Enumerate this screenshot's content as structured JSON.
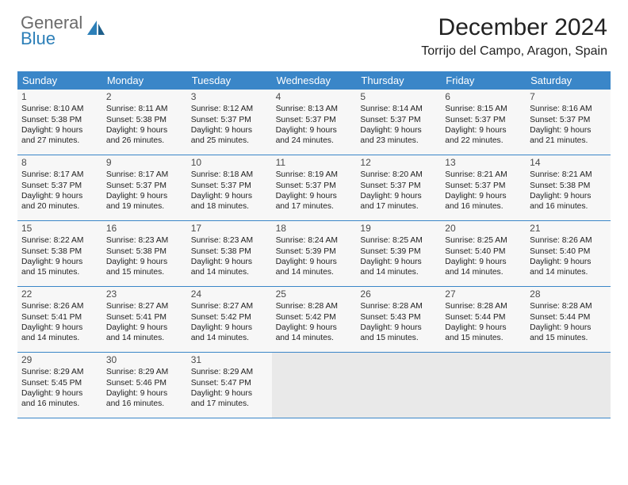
{
  "logo": {
    "textTop": "General",
    "textBottom": "Blue"
  },
  "title": "December 2024",
  "location": "Torrijo del Campo, Aragon, Spain",
  "colors": {
    "headerBar": "#3a86c8",
    "rowBg": "#f7f7f7",
    "ruleLine": "#3a86c8",
    "pageBg": "#ffffff",
    "logoGray": "#6b6b6b",
    "logoBlue": "#2c7fb8"
  },
  "weekdays": [
    "Sunday",
    "Monday",
    "Tuesday",
    "Wednesday",
    "Thursday",
    "Friday",
    "Saturday"
  ],
  "layout": {
    "columns": 7,
    "rows": 5,
    "cellFontSize": 10.3,
    "dayNumFontSize": 12,
    "titleFontSize": 30,
    "locationFontSize": 16
  },
  "days": [
    {
      "n": 1,
      "sunrise": "8:10 AM",
      "sunset": "5:38 PM",
      "daylight": "9 hours and 27 minutes."
    },
    {
      "n": 2,
      "sunrise": "8:11 AM",
      "sunset": "5:38 PM",
      "daylight": "9 hours and 26 minutes."
    },
    {
      "n": 3,
      "sunrise": "8:12 AM",
      "sunset": "5:37 PM",
      "daylight": "9 hours and 25 minutes."
    },
    {
      "n": 4,
      "sunrise": "8:13 AM",
      "sunset": "5:37 PM",
      "daylight": "9 hours and 24 minutes."
    },
    {
      "n": 5,
      "sunrise": "8:14 AM",
      "sunset": "5:37 PM",
      "daylight": "9 hours and 23 minutes."
    },
    {
      "n": 6,
      "sunrise": "8:15 AM",
      "sunset": "5:37 PM",
      "daylight": "9 hours and 22 minutes."
    },
    {
      "n": 7,
      "sunrise": "8:16 AM",
      "sunset": "5:37 PM",
      "daylight": "9 hours and 21 minutes."
    },
    {
      "n": 8,
      "sunrise": "8:17 AM",
      "sunset": "5:37 PM",
      "daylight": "9 hours and 20 minutes."
    },
    {
      "n": 9,
      "sunrise": "8:17 AM",
      "sunset": "5:37 PM",
      "daylight": "9 hours and 19 minutes."
    },
    {
      "n": 10,
      "sunrise": "8:18 AM",
      "sunset": "5:37 PM",
      "daylight": "9 hours and 18 minutes."
    },
    {
      "n": 11,
      "sunrise": "8:19 AM",
      "sunset": "5:37 PM",
      "daylight": "9 hours and 17 minutes."
    },
    {
      "n": 12,
      "sunrise": "8:20 AM",
      "sunset": "5:37 PM",
      "daylight": "9 hours and 17 minutes."
    },
    {
      "n": 13,
      "sunrise": "8:21 AM",
      "sunset": "5:37 PM",
      "daylight": "9 hours and 16 minutes."
    },
    {
      "n": 14,
      "sunrise": "8:21 AM",
      "sunset": "5:38 PM",
      "daylight": "9 hours and 16 minutes."
    },
    {
      "n": 15,
      "sunrise": "8:22 AM",
      "sunset": "5:38 PM",
      "daylight": "9 hours and 15 minutes."
    },
    {
      "n": 16,
      "sunrise": "8:23 AM",
      "sunset": "5:38 PM",
      "daylight": "9 hours and 15 minutes."
    },
    {
      "n": 17,
      "sunrise": "8:23 AM",
      "sunset": "5:38 PM",
      "daylight": "9 hours and 14 minutes."
    },
    {
      "n": 18,
      "sunrise": "8:24 AM",
      "sunset": "5:39 PM",
      "daylight": "9 hours and 14 minutes."
    },
    {
      "n": 19,
      "sunrise": "8:25 AM",
      "sunset": "5:39 PM",
      "daylight": "9 hours and 14 minutes."
    },
    {
      "n": 20,
      "sunrise": "8:25 AM",
      "sunset": "5:40 PM",
      "daylight": "9 hours and 14 minutes."
    },
    {
      "n": 21,
      "sunrise": "8:26 AM",
      "sunset": "5:40 PM",
      "daylight": "9 hours and 14 minutes."
    },
    {
      "n": 22,
      "sunrise": "8:26 AM",
      "sunset": "5:41 PM",
      "daylight": "9 hours and 14 minutes."
    },
    {
      "n": 23,
      "sunrise": "8:27 AM",
      "sunset": "5:41 PM",
      "daylight": "9 hours and 14 minutes."
    },
    {
      "n": 24,
      "sunrise": "8:27 AM",
      "sunset": "5:42 PM",
      "daylight": "9 hours and 14 minutes."
    },
    {
      "n": 25,
      "sunrise": "8:28 AM",
      "sunset": "5:42 PM",
      "daylight": "9 hours and 14 minutes."
    },
    {
      "n": 26,
      "sunrise": "8:28 AM",
      "sunset": "5:43 PM",
      "daylight": "9 hours and 15 minutes."
    },
    {
      "n": 27,
      "sunrise": "8:28 AM",
      "sunset": "5:44 PM",
      "daylight": "9 hours and 15 minutes."
    },
    {
      "n": 28,
      "sunrise": "8:28 AM",
      "sunset": "5:44 PM",
      "daylight": "9 hours and 15 minutes."
    },
    {
      "n": 29,
      "sunrise": "8:29 AM",
      "sunset": "5:45 PM",
      "daylight": "9 hours and 16 minutes."
    },
    {
      "n": 30,
      "sunrise": "8:29 AM",
      "sunset": "5:46 PM",
      "daylight": "9 hours and 16 minutes."
    },
    {
      "n": 31,
      "sunrise": "8:29 AM",
      "sunset": "5:47 PM",
      "daylight": "9 hours and 17 minutes."
    }
  ],
  "labels": {
    "sunrise": "Sunrise: ",
    "sunset": "Sunset: ",
    "daylight": "Daylight: "
  }
}
